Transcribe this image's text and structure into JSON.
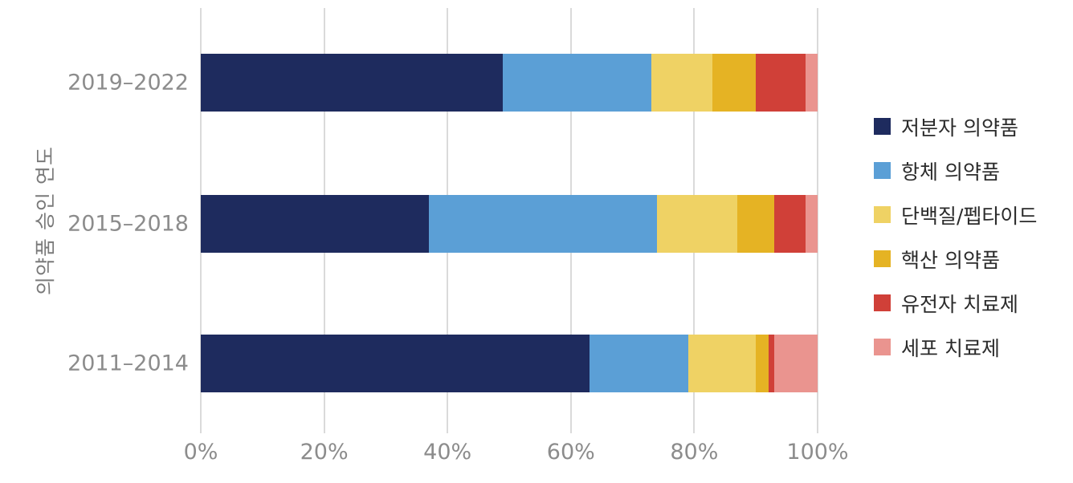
{
  "chart_data": {
    "type": "bar",
    "orientation": "horizontal",
    "stacked": true,
    "title": "",
    "xlabel": "",
    "ylabel": "의약품 승인 연도",
    "categories": [
      "2019–2022",
      "2015–2018",
      "2011–2014"
    ],
    "series": [
      {
        "name": "저분자 의약품",
        "color": "#1e2b5e",
        "values": [
          49,
          37,
          63
        ]
      },
      {
        "name": "항체 의약품",
        "color": "#5b9fd6",
        "values": [
          24,
          37,
          16
        ]
      },
      {
        "name": "단백질/펩타이드",
        "color": "#efd264",
        "values": [
          10,
          13,
          11
        ]
      },
      {
        "name": "핵산 의약품",
        "color": "#e5b324",
        "values": [
          7,
          6,
          2
        ]
      },
      {
        "name": "유전자 치료제",
        "color": "#d04038",
        "values": [
          8,
          5,
          1
        ]
      },
      {
        "name": "세포 치료제",
        "color": "#ea948f",
        "values": [
          2,
          2,
          7
        ]
      }
    ],
    "x_ticks": [
      "0%",
      "20%",
      "40%",
      "60%",
      "80%",
      "100%"
    ],
    "xlim": [
      0,
      100
    ],
    "grid": true,
    "legend_position": "right"
  },
  "layout_note": ""
}
